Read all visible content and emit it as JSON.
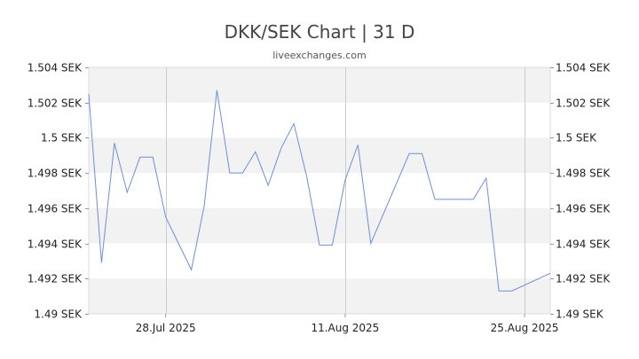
{
  "chart_data": {
    "type": "line",
    "title": "DKK/SEK Chart | 31 D",
    "subtitle": "liveexchanges.com",
    "ylim": [
      1.49,
      1.504
    ],
    "y_ticks": [
      {
        "value": 1.49,
        "label": "1.49 SEK"
      },
      {
        "value": 1.492,
        "label": "1.492 SEK"
      },
      {
        "value": 1.494,
        "label": "1.494 SEK"
      },
      {
        "value": 1.496,
        "label": "1.496 SEK"
      },
      {
        "value": 1.498,
        "label": "1.498 SEK"
      },
      {
        "value": 1.5,
        "label": "1.5 SEK"
      },
      {
        "value": 1.502,
        "label": "1.502 SEK"
      },
      {
        "value": 1.504,
        "label": "1.504 SEK"
      }
    ],
    "x_ticks": [
      {
        "index": 6,
        "label": "28.Jul 2025"
      },
      {
        "index": 20,
        "label": "11.Aug 2025"
      },
      {
        "index": 34,
        "label": "25.Aug 2025"
      }
    ],
    "x_range": [
      0,
      36
    ],
    "grid": true,
    "series": [
      {
        "color": "#6f8fd8",
        "points": [
          [
            0,
            1.5025
          ],
          [
            1,
            1.4929
          ],
          [
            2,
            1.4997
          ],
          [
            3,
            1.4969
          ],
          [
            4,
            1.4989
          ],
          [
            5,
            1.4989
          ],
          [
            6,
            1.4955
          ],
          [
            8,
            1.4925
          ],
          [
            9,
            1.4961
          ],
          [
            10,
            1.5027
          ],
          [
            11,
            1.498
          ],
          [
            12,
            1.498
          ],
          [
            13,
            1.4992
          ],
          [
            14,
            1.4973
          ],
          [
            15,
            1.4994
          ],
          [
            16,
            1.5008
          ],
          [
            17,
            1.4978
          ],
          [
            18,
            1.4939
          ],
          [
            19,
            1.4939
          ],
          [
            20,
            1.4976
          ],
          [
            21,
            1.4996
          ],
          [
            22,
            1.494
          ],
          [
            25,
            1.4991
          ],
          [
            26,
            1.4991
          ],
          [
            27,
            1.4965
          ],
          [
            30,
            1.4965
          ],
          [
            31,
            1.4977
          ],
          [
            32,
            1.4913
          ],
          [
            33,
            1.4913
          ],
          [
            36,
            1.4923
          ]
        ]
      }
    ]
  }
}
